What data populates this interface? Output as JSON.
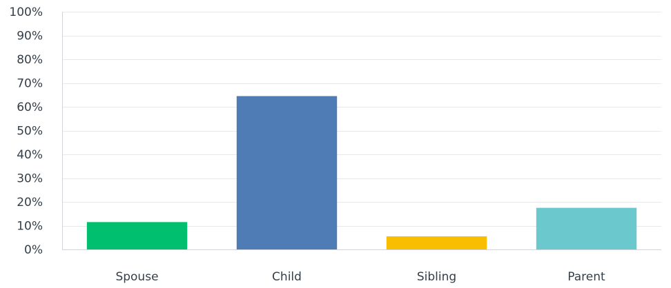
{
  "chart_data": {
    "type": "bar",
    "title": "",
    "xlabel": "",
    "ylabel": "",
    "categories": [
      "Spouse",
      "Child",
      "Sibling",
      "Parent"
    ],
    "values": [
      11.5,
      64.5,
      5.5,
      17.5
    ],
    "colors": [
      "#00bf6f",
      "#507cb6",
      "#f9be00",
      "#6bc8cd"
    ],
    "ylim": [
      0,
      100
    ],
    "yticks": [
      0,
      10,
      20,
      30,
      40,
      50,
      60,
      70,
      80,
      90,
      100
    ],
    "ytick_format": "{v}%",
    "grid": true,
    "legend": "none"
  }
}
